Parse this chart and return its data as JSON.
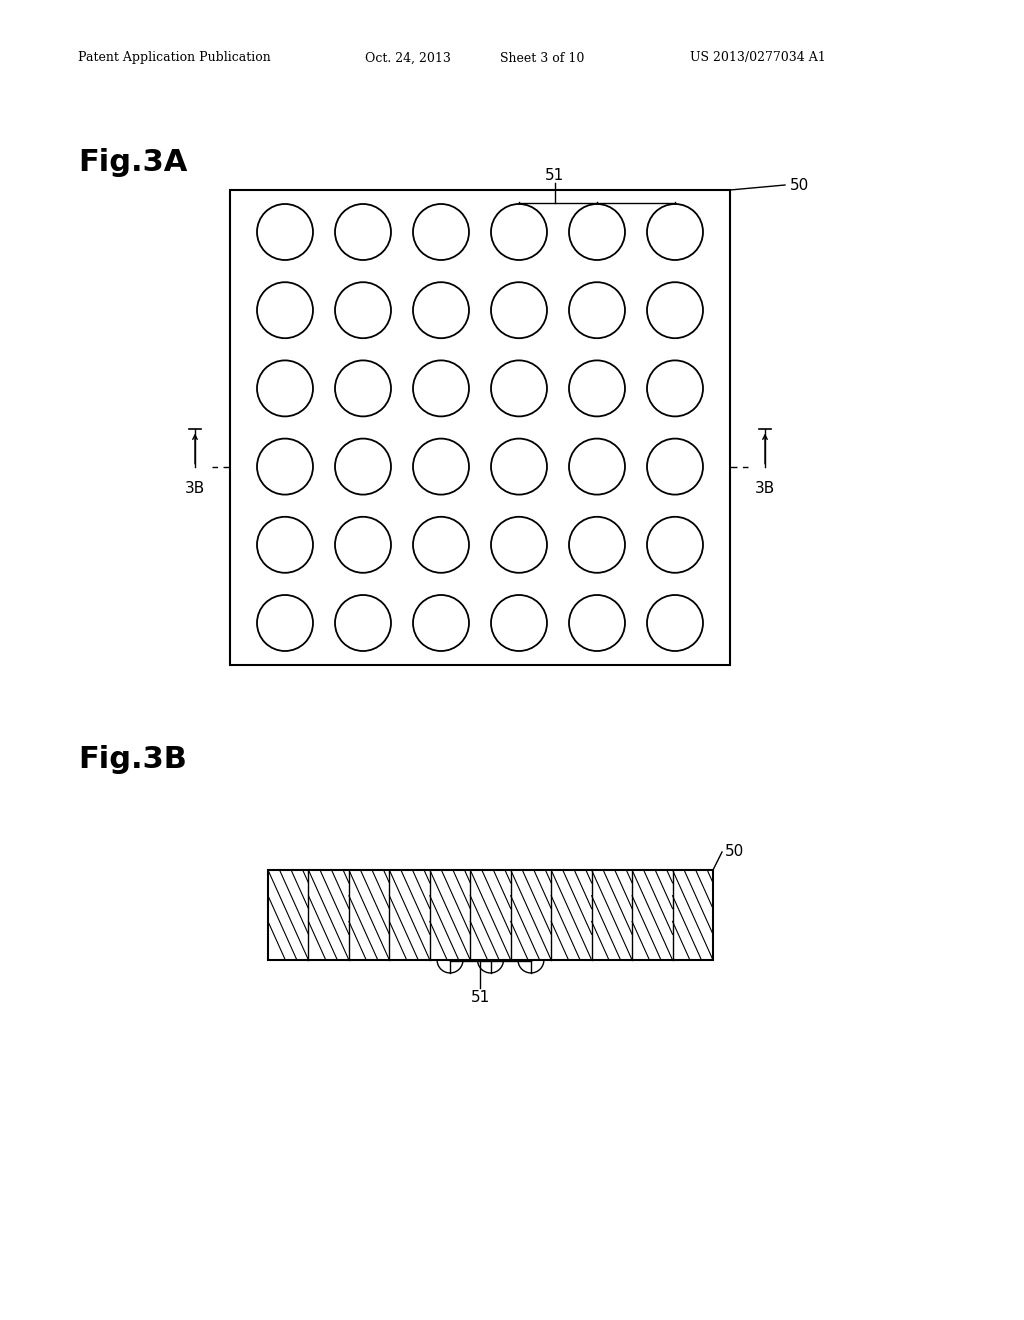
{
  "background_color": "#ffffff",
  "header_text": "Patent Application Publication",
  "header_date": "Oct. 24, 2013",
  "header_sheet": "Sheet 3 of 10",
  "header_patent": "US 2013/0277034 A1",
  "fig3a_label": "Fig.3A",
  "fig3b_label": "Fig.3B",
  "fig3a_rows": 6,
  "fig3a_cols": 6,
  "label_50": "50",
  "label_51": "51",
  "label_3B": "3B",
  "num_hatched_sections": 11
}
